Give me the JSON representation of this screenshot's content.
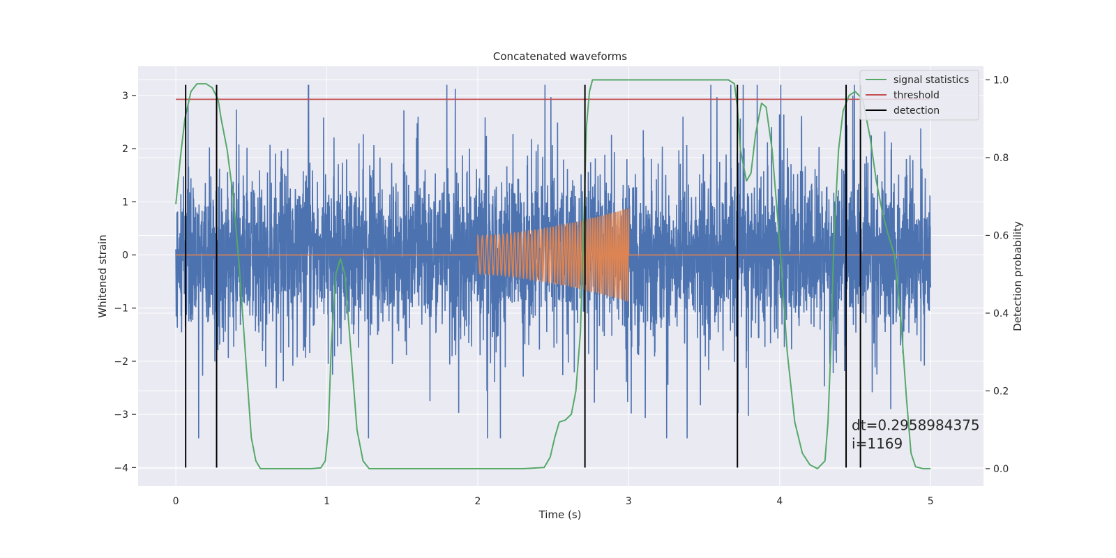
{
  "chart_data": {
    "type": "line",
    "title": "Concatenated waveforms",
    "xlabel": "Time (s)",
    "ylabel": "Whitened strain",
    "ylabel_right": "Detection probability",
    "xlim": [
      -0.25,
      5.35
    ],
    "ylim": [
      -4.35,
      3.55
    ],
    "ylim_right": [
      -0.045,
      1.035
    ],
    "x_ticks": [
      0,
      1,
      2,
      3,
      4,
      5
    ],
    "y_ticks": [
      -4,
      -3,
      -2,
      -1,
      0,
      1,
      2,
      3
    ],
    "y_ticks_right": [
      0.0,
      0.2,
      0.4,
      0.6,
      0.8,
      1.0
    ],
    "x_tick_labels": [
      "0",
      "1",
      "2",
      "3",
      "4",
      "5"
    ],
    "y_tick_labels": [
      "−4",
      "−3",
      "−2",
      "−1",
      "0",
      "1",
      "2",
      "3"
    ],
    "y_tick_labels_right": [
      "0.0",
      "0.2",
      "0.4",
      "0.6",
      "0.8",
      "1.0"
    ],
    "grid": true,
    "legend_position": "top-right",
    "series": [
      {
        "name": "signal statistics",
        "axis": "right",
        "color": "#55a868",
        "points": [
          [
            0.0,
            0.68
          ],
          [
            0.03,
            0.8
          ],
          [
            0.06,
            0.9
          ],
          [
            0.1,
            0.97
          ],
          [
            0.14,
            0.99
          ],
          [
            0.2,
            0.99
          ],
          [
            0.24,
            0.98
          ],
          [
            0.28,
            0.95
          ],
          [
            0.3,
            0.9
          ],
          [
            0.34,
            0.82
          ],
          [
            0.38,
            0.7
          ],
          [
            0.42,
            0.52
          ],
          [
            0.46,
            0.3
          ],
          [
            0.5,
            0.08
          ],
          [
            0.53,
            0.02
          ],
          [
            0.56,
            0.0
          ],
          [
            0.7,
            0.0
          ],
          [
            0.8,
            0.0
          ],
          [
            0.9,
            0.0
          ],
          [
            0.96,
            0.002
          ],
          [
            0.99,
            0.02
          ],
          [
            1.01,
            0.1
          ],
          [
            1.03,
            0.32
          ],
          [
            1.06,
            0.5
          ],
          [
            1.09,
            0.54
          ],
          [
            1.12,
            0.5
          ],
          [
            1.15,
            0.35
          ],
          [
            1.2,
            0.1
          ],
          [
            1.24,
            0.02
          ],
          [
            1.28,
            0.0
          ],
          [
            1.5,
            0.0
          ],
          [
            2.0,
            0.0
          ],
          [
            2.3,
            0.0
          ],
          [
            2.44,
            0.003
          ],
          [
            2.48,
            0.03
          ],
          [
            2.51,
            0.08
          ],
          [
            2.54,
            0.12
          ],
          [
            2.58,
            0.125
          ],
          [
            2.62,
            0.14
          ],
          [
            2.65,
            0.2
          ],
          [
            2.68,
            0.35
          ],
          [
            2.7,
            0.6
          ],
          [
            2.72,
            0.88
          ],
          [
            2.74,
            0.97
          ],
          [
            2.76,
            1.0
          ],
          [
            3.0,
            1.0
          ],
          [
            3.4,
            1.0
          ],
          [
            3.66,
            1.0
          ],
          [
            3.7,
            0.99
          ],
          [
            3.72,
            0.93
          ],
          [
            3.74,
            0.82
          ],
          [
            3.78,
            0.74
          ],
          [
            3.81,
            0.76
          ],
          [
            3.84,
            0.86
          ],
          [
            3.88,
            0.94
          ],
          [
            3.91,
            0.93
          ],
          [
            3.95,
            0.82
          ],
          [
            4.0,
            0.58
          ],
          [
            4.05,
            0.3
          ],
          [
            4.1,
            0.12
          ],
          [
            4.15,
            0.04
          ],
          [
            4.2,
            0.01
          ],
          [
            4.25,
            0.0
          ],
          [
            4.3,
            0.02
          ],
          [
            4.32,
            0.12
          ],
          [
            4.34,
            0.32
          ],
          [
            4.36,
            0.6
          ],
          [
            4.39,
            0.82
          ],
          [
            4.42,
            0.92
          ],
          [
            4.46,
            0.96
          ],
          [
            4.5,
            0.97
          ],
          [
            4.55,
            0.95
          ],
          [
            4.6,
            0.85
          ],
          [
            4.64,
            0.74
          ],
          [
            4.68,
            0.66
          ],
          [
            4.72,
            0.6
          ],
          [
            4.76,
            0.55
          ],
          [
            4.8,
            0.4
          ],
          [
            4.84,
            0.18
          ],
          [
            4.87,
            0.04
          ],
          [
            4.9,
            0.005
          ],
          [
            4.95,
            0.0
          ],
          [
            5.0,
            0.0
          ]
        ]
      },
      {
        "name": "threshold",
        "axis": "right",
        "color": "#c44e52",
        "value": 0.95,
        "x_range": [
          0,
          5
        ]
      },
      {
        "name": "detection",
        "axis": "left",
        "color": "#000000",
        "x": [
          0.065,
          0.27,
          2.71,
          3.72,
          4.44,
          4.535
        ],
        "y_range": [
          -4.0,
          3.2
        ]
      }
    ],
    "extra_series": [
      {
        "label": "whitened strain noise",
        "axis": "left",
        "color": "#4c72b0",
        "description": "noisy whitened strain, approximately Gaussian, sigma ~0.9, x from 0 to 5 s, spikes between -3.5 and 3.2"
      },
      {
        "label": "injected waveform",
        "axis": "left",
        "color": "#dd8452",
        "description": "chirp injected between 2 and 3 s, amplitude rising from ~0.35 to ~0.9, zero elsewhere"
      }
    ],
    "annotations": [
      {
        "text": "dt=0.2958984375",
        "x": 4.5,
        "y": -3.2
      },
      {
        "text": " i=1169",
        "x": 4.5,
        "y": -3.55
      }
    ]
  }
}
